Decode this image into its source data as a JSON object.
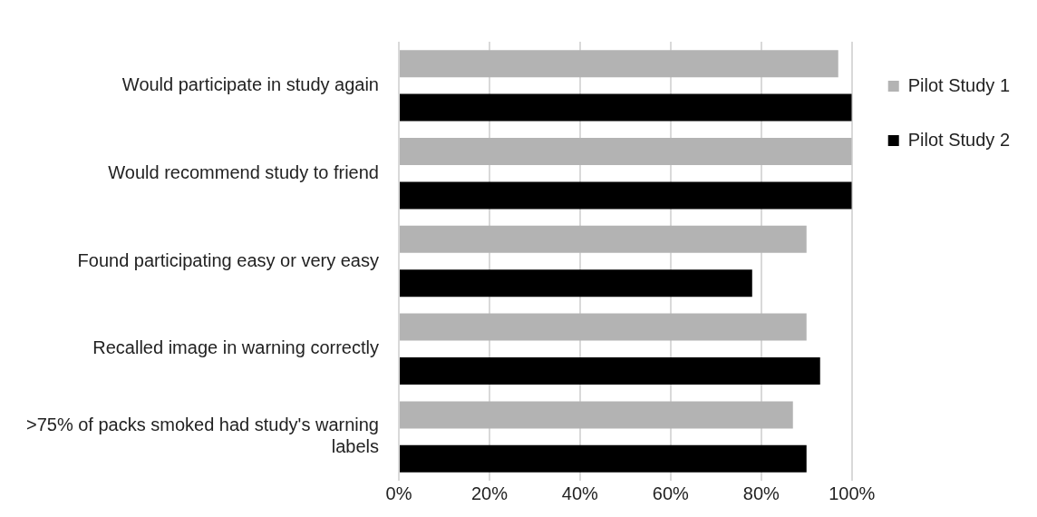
{
  "chart_data": {
    "type": "bar",
    "orientation": "horizontal",
    "categories": [
      "Would participate in study again",
      "Would recommend study to friend",
      "Found participating easy or very easy",
      "Recalled image in warning correctly",
      ">75% of packs smoked had study's warning labels"
    ],
    "series": [
      {
        "name": "Pilot Study 1",
        "color": "#b3b3b3",
        "values": [
          97,
          100,
          90,
          90,
          87
        ]
      },
      {
        "name": "Pilot Study 2",
        "color": "#000000",
        "values": [
          100,
          100,
          78,
          93,
          90
        ]
      }
    ],
    "xlim": [
      0,
      100
    ],
    "xticks": [
      {
        "value": 0,
        "label": "0%"
      },
      {
        "value": 20,
        "label": "20%"
      },
      {
        "value": 40,
        "label": "40%"
      },
      {
        "value": 60,
        "label": "60%"
      },
      {
        "value": 80,
        "label": "80%"
      },
      {
        "value": 100,
        "label": "100%"
      }
    ],
    "grid": "x",
    "legend": "top right"
  }
}
